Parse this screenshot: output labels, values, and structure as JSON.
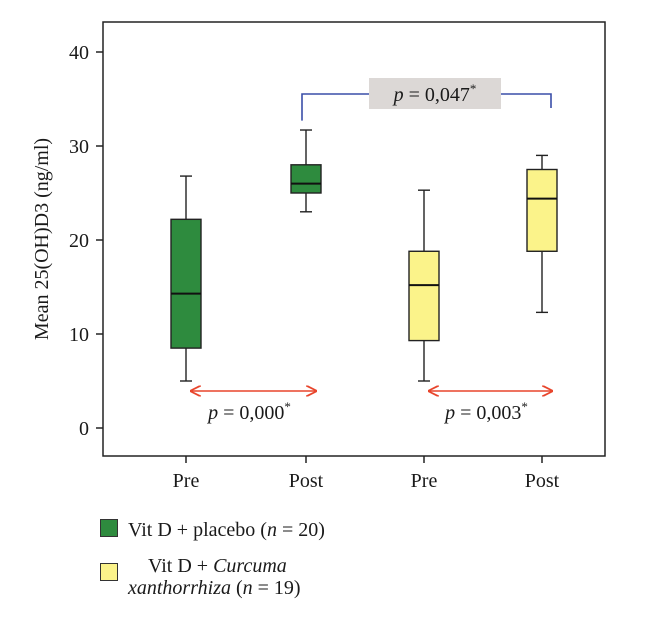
{
  "chart_data": {
    "type": "box",
    "ylabel": "Mean 25(OH)D3 (ng/ml)",
    "ylim": [
      0,
      42
    ],
    "yticks": [
      "0",
      "10",
      "20",
      "30",
      "40"
    ],
    "categories": [
      "Pre",
      "Post",
      "Pre",
      "Post"
    ],
    "boxes": [
      {
        "category": "Pre",
        "group": 0,
        "min": 5.0,
        "q1": 8.5,
        "median": 14.3,
        "q3": 22.2,
        "max": 26.8
      },
      {
        "category": "Post",
        "group": 0,
        "min": 23.0,
        "q1": 25.0,
        "median": 26.0,
        "q3": 28.0,
        "max": 31.7
      },
      {
        "category": "Pre",
        "group": 1,
        "min": 5.0,
        "q1": 9.3,
        "median": 15.2,
        "q3": 18.8,
        "max": 25.3
      },
      {
        "category": "Post",
        "group": 1,
        "min": 12.3,
        "q1": 18.8,
        "median": 24.4,
        "q3": 27.5,
        "max": 29.0
      }
    ],
    "annotations": [
      {
        "text": "p = 0,000*",
        "between": [
          0,
          1
        ],
        "style": "red-arrow"
      },
      {
        "text": "p = 0,003*",
        "between": [
          2,
          3
        ],
        "style": "red-arrow"
      },
      {
        "text": "p = 0,047*",
        "between": [
          1,
          3
        ],
        "style": "bracket"
      }
    ],
    "legend": [
      {
        "label": "Vit D + placebo (n = 20)",
        "color": "#2e8b3e"
      },
      {
        "label": "Vit D + Curcuma xanthorrhiza (n = 19)",
        "color": "#fbf38a"
      }
    ],
    "grid": false
  },
  "legend_ui": {
    "placebo": {
      "prefix": "Vit D + placebo (",
      "n_var": "n",
      "suffix": " = 20)"
    },
    "curcuma": {
      "line1_prefix": "Vit D + ",
      "line1_italic": "Curcuma",
      "line2_italic": "xanthorrhiza",
      "line2_suffix": " (",
      "n_var": "n",
      "suffix": " = 19)"
    }
  },
  "colors": {
    "placebo": "#2e8b3e",
    "curcuma": "#fbf38a",
    "arrow": "#e8452c",
    "bracket": "#3a4ea8",
    "pbox": "#dcd8d6"
  }
}
